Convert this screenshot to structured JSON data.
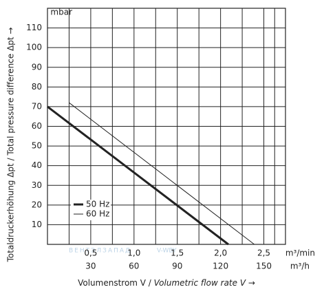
{
  "chart_data": {
    "type": "line",
    "y_unit": "mbar",
    "x_unit": "m³/min",
    "x2_unit": "m³/h",
    "ylabel": "Totaldruckerhöhung Δpt / Total pressure difference Δpt →",
    "xlabel": "Volumenstrom V / ",
    "xlabel_italic": "Volumetric flow rate V →",
    "watermark": [
      "ВЕНТЭЛЗАПАД",
      "V-WBY"
    ],
    "xlim": [
      0,
      2.75
    ],
    "xticks": [
      {
        "value": 0.5,
        "label": "0,5"
      },
      {
        "value": 1.0,
        "label": "1,0"
      },
      {
        "value": 1.5,
        "label": "1,5"
      },
      {
        "value": 2.0,
        "label": "2,0"
      },
      {
        "value": 2.5,
        "label": "2,5"
      }
    ],
    "x2lim": [
      0,
      165
    ],
    "x2ticks": [
      30,
      60,
      90,
      120,
      150
    ],
    "ylim": [
      0,
      120
    ],
    "yticks": [
      10,
      20,
      30,
      40,
      50,
      60,
      70,
      80,
      90,
      100,
      110
    ],
    "grid": true,
    "series": [
      {
        "name": "50 Hz",
        "color": "#222222",
        "width": 3,
        "x": [
          0,
          2.09
        ],
        "values": [
          70,
          0
        ]
      },
      {
        "name": "60 Hz",
        "color": "#222222",
        "width": 1,
        "x": [
          0.25,
          2.39
        ],
        "values": [
          72,
          0
        ]
      }
    ]
  }
}
